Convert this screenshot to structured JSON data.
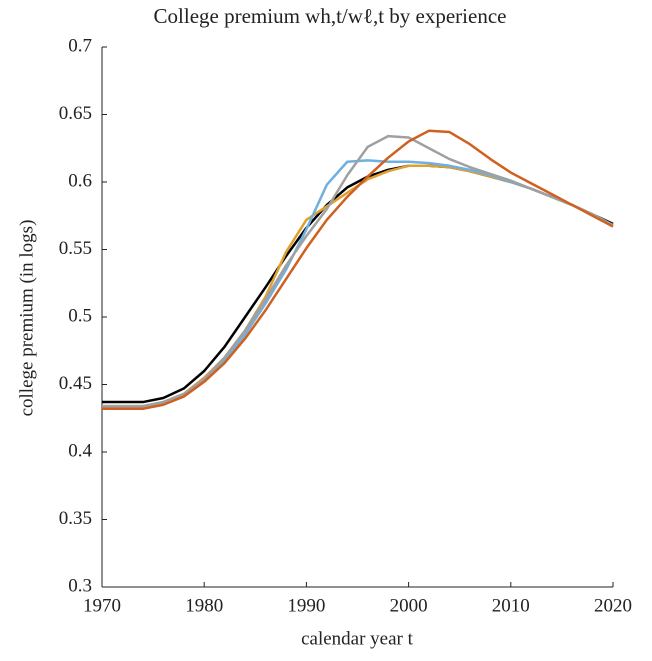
{
  "chart_data": {
    "type": "line",
    "title": "College premium wh,t/wℓ,t by experience",
    "x_label": "calendar year t",
    "y_label": "college premium (in logs)",
    "x": [
      1970,
      1972,
      1974,
      1976,
      1978,
      1980,
      1982,
      1984,
      1986,
      1988,
      1990,
      1992,
      1994,
      1996,
      1998,
      2000,
      2002,
      2004,
      2006,
      2008,
      2010,
      2012,
      2014,
      2016,
      2018,
      2020
    ],
    "series": [
      {
        "color": "#000000",
        "values": [
          0.437,
          0.437,
          0.437,
          0.44,
          0.447,
          0.46,
          0.478,
          0.5,
          0.522,
          0.545,
          0.566,
          0.583,
          0.596,
          0.604,
          0.609,
          0.612,
          0.612,
          0.611,
          0.608,
          0.604,
          0.6,
          0.595,
          0.589,
          0.583,
          0.576,
          0.569
        ]
      },
      {
        "color": "#e0a030",
        "values": [
          0.434,
          0.434,
          0.434,
          0.437,
          0.443,
          0.455,
          0.47,
          0.49,
          0.515,
          0.548,
          0.572,
          0.582,
          0.592,
          0.602,
          0.608,
          0.612,
          0.612,
          0.611,
          0.608,
          0.604,
          0.6,
          0.595,
          0.589,
          0.583,
          0.576,
          0.568
        ]
      },
      {
        "color": "#6fb0e0",
        "values": [
          0.433,
          0.433,
          0.433,
          0.436,
          0.442,
          0.453,
          0.468,
          0.487,
          0.51,
          0.535,
          0.565,
          0.598,
          0.615,
          0.616,
          0.615,
          0.615,
          0.614,
          0.612,
          0.609,
          0.605,
          0.6,
          0.595,
          0.589,
          0.583,
          0.576,
          0.568
        ]
      },
      {
        "color": "#a0a0a0",
        "values": [
          0.434,
          0.434,
          0.434,
          0.437,
          0.443,
          0.454,
          0.47,
          0.49,
          0.513,
          0.538,
          0.56,
          0.58,
          0.605,
          0.626,
          0.634,
          0.633,
          0.625,
          0.617,
          0.611,
          0.606,
          0.601,
          0.595,
          0.589,
          0.583,
          0.576,
          0.568
        ]
      },
      {
        "color": "#d06020",
        "values": [
          0.432,
          0.432,
          0.432,
          0.435,
          0.441,
          0.452,
          0.466,
          0.484,
          0.505,
          0.528,
          0.551,
          0.572,
          0.589,
          0.604,
          0.618,
          0.63,
          0.638,
          0.637,
          0.628,
          0.617,
          0.607,
          0.599,
          0.591,
          0.583,
          0.575,
          0.567
        ]
      }
    ],
    "xlim": [
      1970,
      2020
    ],
    "xticks": [
      1970,
      1980,
      1990,
      2000,
      2010,
      2020
    ],
    "ylim": [
      0.3,
      0.7
    ],
    "yticks": [
      0.3,
      0.35,
      0.4,
      0.45,
      0.5,
      0.55,
      0.6,
      0.65,
      0.7
    ],
    "grid": false
  }
}
